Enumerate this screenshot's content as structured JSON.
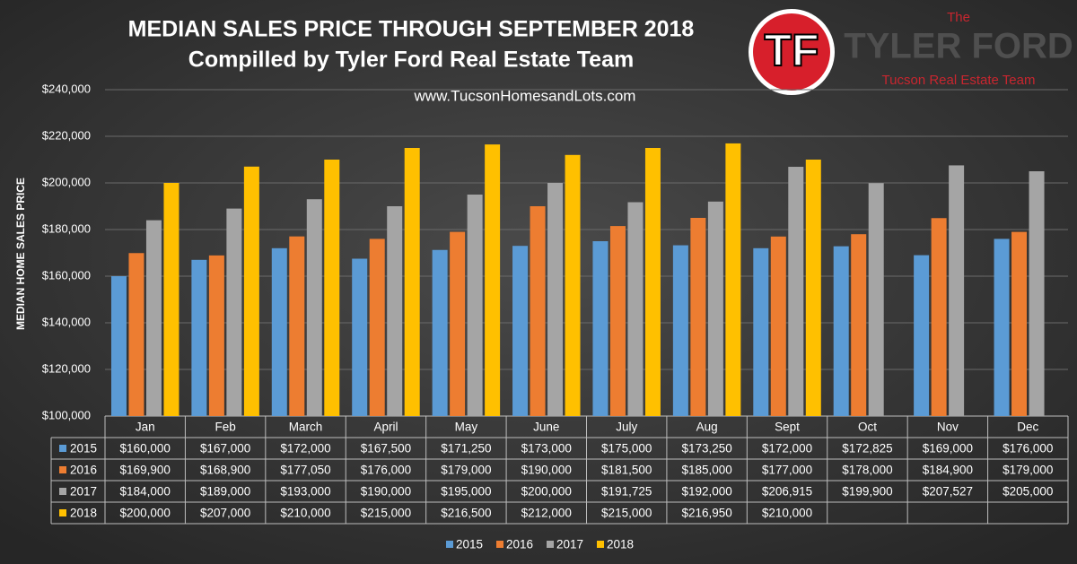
{
  "chart_data": {
    "type": "bar",
    "title": "MEDIAN SALES PRICE THROUGH SEPTEMBER 2018",
    "subtitle": "Compilled by Tyler Ford Real Estate Team",
    "annotation": "www.TucsonHomesandLots.com",
    "y_label": "MEDIAN HOME SALES PRICE",
    "logo": {
      "mark": "TF",
      "small": "The",
      "name": "TYLER FORD",
      "tagline": "Tucson Real Estate Team"
    },
    "categories": [
      "Jan",
      "Feb",
      "March",
      "April",
      "May",
      "June",
      "July",
      "Aug",
      "Sept",
      "Oct",
      "Nov",
      "Dec"
    ],
    "series": [
      {
        "name": "2015",
        "color": "#5b9bd5",
        "values": [
          160000,
          167000,
          172000,
          167500,
          171250,
          173000,
          175000,
          173250,
          172000,
          172825,
          169000,
          176000
        ],
        "value_labels": [
          "$160,000",
          "$167,000",
          "$172,000",
          "$167,500",
          "$171,250",
          "$173,000",
          "$175,000",
          "$173,250",
          "$172,000",
          "$172,825",
          "$169,000",
          "$176,000"
        ]
      },
      {
        "name": "2016",
        "color": "#ed7d31",
        "values": [
          169900,
          168900,
          177050,
          176000,
          179000,
          190000,
          181500,
          185000,
          177000,
          178000,
          184900,
          179000
        ],
        "value_labels": [
          "$169,900",
          "$168,900",
          "$177,050",
          "$176,000",
          "$179,000",
          "$190,000",
          "$181,500",
          "$185,000",
          "$177,000",
          "$178,000",
          "$184,900",
          "$179,000"
        ]
      },
      {
        "name": "2017",
        "color": "#a5a5a5",
        "values": [
          184000,
          189000,
          193000,
          190000,
          195000,
          200000,
          191725,
          192000,
          206915,
          199900,
          207527,
          205000
        ],
        "value_labels": [
          "$184,000",
          "$189,000",
          "$193,000",
          "$190,000",
          "$195,000",
          "$200,000",
          "$191,725",
          "$192,000",
          "$206,915",
          "$199,900",
          "$207,527",
          "$205,000"
        ]
      },
      {
        "name": "2018",
        "color": "#ffc000",
        "values": [
          200000,
          207000,
          210000,
          215000,
          216500,
          212000,
          215000,
          216950,
          210000,
          null,
          null,
          null
        ],
        "value_labels": [
          "$200,000",
          "$207,000",
          "$210,000",
          "$215,000",
          "$216,500",
          "$212,000",
          "$215,000",
          "$216,950",
          "$210,000",
          null,
          null,
          null
        ]
      }
    ],
    "ylim": [
      100000,
      240000
    ],
    "yticks": [
      {
        "value": 100000,
        "label": "$100,000"
      },
      {
        "value": 120000,
        "label": "$120,000"
      },
      {
        "value": 140000,
        "label": "$140,000"
      },
      {
        "value": 160000,
        "label": "$160,000"
      },
      {
        "value": 180000,
        "label": "$180,000"
      },
      {
        "value": 200000,
        "label": "$200,000"
      },
      {
        "value": 220000,
        "label": "$220,000"
      },
      {
        "value": 240000,
        "label": "$240,000"
      }
    ],
    "grid": true
  }
}
